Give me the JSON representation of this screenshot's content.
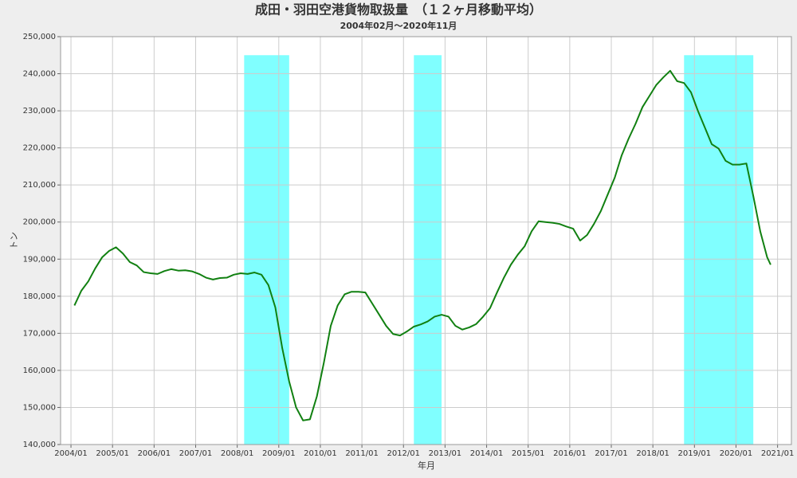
{
  "chart_data": {
    "type": "line",
    "title": "成田・羽田空港貨物取扱量　（１２ヶ月移動平均）",
    "subtitle": "2004年02月～2020年11月",
    "xlabel": "年月",
    "ylabel": "トン",
    "x": [
      "2004/02",
      "2004/04",
      "2004/06",
      "2004/08",
      "2004/10",
      "2004/12",
      "2005/02",
      "2005/04",
      "2005/06",
      "2005/08",
      "2005/10",
      "2005/12",
      "2006/02",
      "2006/04",
      "2006/06",
      "2006/08",
      "2006/10",
      "2006/12",
      "2007/02",
      "2007/04",
      "2007/06",
      "2007/08",
      "2007/10",
      "2007/12",
      "2008/02",
      "2008/04",
      "2008/06",
      "2008/08",
      "2008/10",
      "2008/12",
      "2009/02",
      "2009/04",
      "2009/06",
      "2009/08",
      "2009/10",
      "2009/12",
      "2010/02",
      "2010/04",
      "2010/06",
      "2010/08",
      "2010/10",
      "2010/12",
      "2011/02",
      "2011/04",
      "2011/06",
      "2011/08",
      "2011/10",
      "2011/12",
      "2012/02",
      "2012/04",
      "2012/06",
      "2012/08",
      "2012/10",
      "2012/12",
      "2013/02",
      "2013/04",
      "2013/06",
      "2013/08",
      "2013/10",
      "2013/12",
      "2014/02",
      "2014/04",
      "2014/06",
      "2014/08",
      "2014/10",
      "2014/12",
      "2015/02",
      "2015/04",
      "2015/06",
      "2015/08",
      "2015/10",
      "2015/12",
      "2016/02",
      "2016/04",
      "2016/06",
      "2016/08",
      "2016/10",
      "2016/12",
      "2017/02",
      "2017/04",
      "2017/06",
      "2017/08",
      "2017/10",
      "2017/12",
      "2018/02",
      "2018/04",
      "2018/06",
      "2018/08",
      "2018/10",
      "2018/12",
      "2019/02",
      "2019/04",
      "2019/06",
      "2019/08",
      "2019/10",
      "2019/12",
      "2020/02",
      "2020/04",
      "2020/06",
      "2020/08",
      "2020/10",
      "2020/11"
    ],
    "series": [
      {
        "color": "#118011",
        "values": [
          177500,
          181500,
          184000,
          187500,
          190500,
          192200,
          193200,
          191500,
          189200,
          188300,
          186500,
          186200,
          186000,
          186800,
          187300,
          186900,
          187000,
          186700,
          186000,
          185000,
          184500,
          184900,
          185000,
          185800,
          186200,
          186000,
          186400,
          185800,
          183000,
          177000,
          166000,
          157000,
          150000,
          146500,
          146800,
          153000,
          162000,
          172000,
          177500,
          180500,
          181200,
          181200,
          181000,
          178000,
          175000,
          172000,
          169800,
          169400,
          170500,
          171800,
          172400,
          173200,
          174500,
          175000,
          174500,
          172000,
          171000,
          171600,
          172500,
          174500,
          176800,
          181000,
          185000,
          188500,
          191200,
          193500,
          197500,
          200200,
          200000,
          199800,
          199500,
          198800,
          198200,
          195000,
          196500,
          199500,
          203000,
          207500,
          212000,
          218000,
          222500,
          226500,
          231000,
          234000,
          237000,
          239000,
          240800,
          238000,
          237500,
          235000,
          230000,
          225500,
          221000,
          219800,
          216500,
          215500,
          215500,
          215800,
          207000,
          197500,
          190500,
          188500
        ]
      }
    ],
    "shading": [
      {
        "start": "2008/03",
        "end": "2009/04"
      },
      {
        "start": "2012/04",
        "end": "2012/12"
      },
      {
        "start": "2018/10",
        "end": "2020/06"
      }
    ],
    "shading_top": 245000,
    "shading_color": "#80ffff",
    "xlim": [
      "2003/10",
      "2021/05"
    ],
    "xticks": [
      "2004/01",
      "2005/01",
      "2006/01",
      "2007/01",
      "2008/01",
      "2009/01",
      "2010/01",
      "2011/01",
      "2012/01",
      "2013/01",
      "2014/01",
      "2015/01",
      "2016/01",
      "2017/01",
      "2018/01",
      "2019/01",
      "2020/01",
      "2021/01"
    ],
    "ylim": [
      140000,
      250000
    ],
    "yticks": [
      {
        "value": 140000,
        "label": "140,000"
      },
      {
        "value": 150000,
        "label": "150,000"
      },
      {
        "value": 160000,
        "label": "160,000"
      },
      {
        "value": 170000,
        "label": "170,000"
      },
      {
        "value": 180000,
        "label": "180,000"
      },
      {
        "value": 190000,
        "label": "190,000"
      },
      {
        "value": 200000,
        "label": "200,000"
      },
      {
        "value": 210000,
        "label": "210,000"
      },
      {
        "value": 220000,
        "label": "220,000"
      },
      {
        "value": 230000,
        "label": "230,000"
      },
      {
        "value": 240000,
        "label": "240,000"
      },
      {
        "value": 250000,
        "label": "250,000"
      }
    ],
    "grid": true
  }
}
